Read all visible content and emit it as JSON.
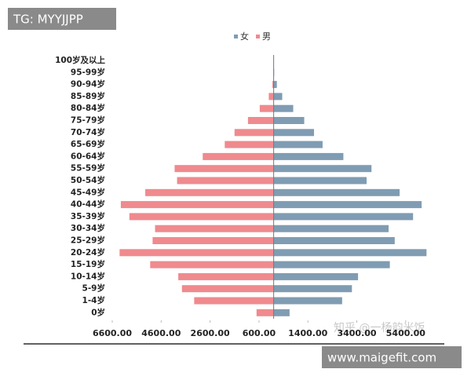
{
  "chart_data": {
    "type": "bar",
    "orientation": "horizontal",
    "stacked": true,
    "categories": [
      "100岁及以上",
      "95-99岁",
      "90-94岁",
      "85-89岁",
      "80-84岁",
      "75-79岁",
      "70-74岁",
      "65-69岁",
      "60-64岁",
      "55-59岁",
      "50-54岁",
      "45-49岁",
      "40-44岁",
      "35-39岁",
      "30-34岁",
      "25-29岁",
      "20-24岁",
      "15-19岁",
      "10-14岁",
      "5-9岁",
      "1-4岁",
      "0岁"
    ],
    "series": [
      {
        "name": "女",
        "color": "#7f9cb3",
        "values": [
          5,
          20,
          130,
          350,
          800,
          1250,
          1650,
          2000,
          2850,
          4000,
          3800,
          5150,
          6050,
          5700,
          4700,
          4950,
          6250,
          4750,
          3450,
          3200,
          2800,
          650
        ]
      },
      {
        "name": "男",
        "color": "#ef8a8e",
        "values": [
          0,
          -10,
          -50,
          -200,
          -570,
          -1050,
          -1600,
          -2000,
          -2900,
          -4050,
          -3950,
          -5250,
          -6250,
          -5900,
          -4850,
          -4950,
          -6300,
          -5050,
          -3900,
          -3750,
          -3250,
          -700
        ]
      }
    ],
    "xlim": [
      -6600,
      6400
    ],
    "xticks": [
      {
        "value": -6600,
        "label": "6600.00"
      },
      {
        "value": -4600,
        "label": "4600.00"
      },
      {
        "value": -2600,
        "label": "2600.00"
      },
      {
        "value": -600,
        "label": "600.00"
      },
      {
        "value": 1400,
        "label": "1400.00"
      },
      {
        "value": 3400,
        "label": "3400.00"
      },
      {
        "value": 5400,
        "label": "5400.00"
      }
    ],
    "legend": "top",
    "grid": false
  },
  "watermarks": {
    "top_left": "TG: MYYJJPP",
    "bottom_right": "www.maigefit.com",
    "center": "知乎 @一杨韵米饭"
  }
}
